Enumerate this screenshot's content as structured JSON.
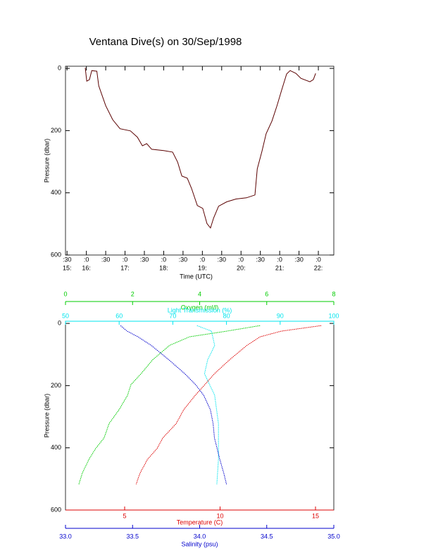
{
  "chart_data": [
    {
      "type": "line",
      "title": "Ventana Dive(s) on 30/Sep/1998",
      "xlabel": "Time (UTC)",
      "ylabel": "Pressure (dbar)",
      "x": [
        15.97,
        16.01,
        16.08,
        16.14,
        16.27,
        16.32,
        16.5,
        16.68,
        16.87,
        17.14,
        17.32,
        17.45,
        17.56,
        17.69,
        18.0,
        18.23,
        18.36,
        18.47,
        18.61,
        18.72,
        18.87,
        19.01,
        19.12,
        19.21,
        19.29,
        19.42,
        19.63,
        19.87,
        20.14,
        20.36,
        20.42,
        20.54,
        20.65,
        20.8,
        20.93,
        21.05,
        21.18,
        21.27,
        21.42,
        21.55,
        21.78,
        21.87,
        21.93
      ],
      "values": [
        -2,
        41,
        36,
        7,
        9,
        56,
        120,
        165,
        194,
        201,
        221,
        249,
        242,
        260,
        264,
        269,
        301,
        346,
        353,
        386,
        441,
        450,
        499,
        513,
        481,
        443,
        429,
        420,
        416,
        407,
        323,
        267,
        210,
        169,
        120,
        70,
        18,
        7,
        16,
        32,
        43,
        36,
        16
      ],
      "color": "#5a0000",
      "inverted": true,
      "xlim": [
        15.46,
        22.4
      ],
      "xticks": [
        {
          "value": 15.5,
          "label": ":30"
        },
        {
          "value": 16,
          "label": ":0"
        },
        {
          "value": 16.5,
          "label": ":30"
        },
        {
          "value": 17,
          "label": ":0"
        },
        {
          "value": 17.5,
          "label": ":30"
        },
        {
          "value": 18,
          "label": ":0"
        },
        {
          "value": 18.5,
          "label": ":30"
        },
        {
          "value": 19,
          "label": ":0"
        },
        {
          "value": 19.5,
          "label": ":30"
        },
        {
          "value": 20,
          "label": ":0"
        },
        {
          "value": 20.5,
          "label": ":30"
        },
        {
          "value": 21,
          "label": ":0"
        },
        {
          "value": 21.5,
          "label": ":30"
        },
        {
          "value": 22,
          "label": ":0"
        }
      ],
      "xtick_hours": [
        {
          "value": 15.5,
          "label": "15:"
        },
        {
          "value": 16,
          "label": "16:"
        },
        {
          "value": 17,
          "label": "17:"
        },
        {
          "value": 18,
          "label": "18:"
        },
        {
          "value": 19,
          "label": "19:"
        },
        {
          "value": 20,
          "label": "20:"
        },
        {
          "value": 21,
          "label": "21:"
        },
        {
          "value": 22,
          "label": "22:"
        }
      ],
      "ylim": [
        -7,
        600
      ],
      "yticks": [
        0,
        200,
        400,
        600
      ]
    },
    {
      "type": "profile",
      "ylabel": "Pressure (dbar)",
      "inverted": true,
      "ylim": [
        -7,
        600
      ],
      "yticks": [
        0,
        200,
        400,
        600
      ],
      "axes": [
        {
          "label": "Oxygen (ml/l)",
          "color": "#00cc00",
          "lim": [
            0,
            8
          ],
          "ticks": [
            0,
            2,
            4,
            6,
            8
          ],
          "x": [
            5.8,
            4.8,
            3.7,
            3.1,
            2.6,
            2.25,
            1.95,
            1.85,
            1.6,
            1.3,
            1.15,
            0.9,
            0.7,
            0.5,
            0.4
          ],
          "y": [
            7,
            25,
            43,
            71,
            117,
            162,
            197,
            231,
            277,
            322,
            368,
            402,
            437,
            482,
            517
          ]
        },
        {
          "label": "Light Transmission (%)",
          "color": "#00e5ee",
          "lim": [
            50,
            100
          ],
          "ticks": [
            50,
            60,
            70,
            80,
            90,
            100
          ],
          "x": [
            74.5,
            77.2,
            77.8,
            76.5,
            75.9,
            77.8,
            78.5,
            78.5,
            78.2
          ],
          "y": [
            7,
            25,
            71,
            117,
            162,
            231,
            322,
            437,
            517
          ]
        },
        {
          "label": "Temperature (C)",
          "color": "#dd0000",
          "lim": [
            1.9,
            15.96
          ],
          "ticks": [
            5,
            10,
            15
          ],
          "x": [
            15.3,
            13.2,
            12.1,
            11.4,
            10.5,
            9.7,
            9.2,
            8.7,
            8.1,
            7.7,
            7.0,
            6.7,
            6.2,
            5.8,
            5.6
          ],
          "y": [
            7,
            25,
            43,
            71,
            117,
            162,
            197,
            231,
            277,
            322,
            368,
            402,
            437,
            482,
            517
          ]
        },
        {
          "label": "Salinity (psu)",
          "color": "#0000cc",
          "lim": [
            33,
            35
          ],
          "ticks": [
            {
              "value": 33,
              "label": "33.0"
            },
            {
              "value": 33.5,
              "label": "33.5"
            },
            {
              "value": 34,
              "label": "34.0"
            },
            {
              "value": 34.5,
              "label": "34.5"
            },
            {
              "value": 35,
              "label": "35.0"
            }
          ],
          "x": [
            33.41,
            33.46,
            33.54,
            33.64,
            33.77,
            33.89,
            33.97,
            34.03,
            34.08,
            34.1,
            34.11,
            34.13,
            34.15,
            34.18,
            34.2
          ],
          "y": [
            7,
            25,
            43,
            71,
            117,
            162,
            197,
            231,
            277,
            322,
            368,
            402,
            437,
            482,
            517
          ]
        }
      ]
    }
  ]
}
